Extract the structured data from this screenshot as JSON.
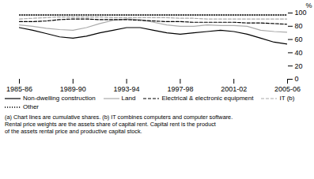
{
  "chart_data": {
    "type": "line",
    "ylabel": "%",
    "footnote": "(a) Chart lines are cumulative shares.  (b) IT combines computers and computer software.\nRental price weights are the assets share of capital rent. Capital rent is the product\nof the assets rental price and productive capital stock.",
    "x": [
      0,
      1,
      2,
      3,
      4,
      5,
      6,
      7,
      8,
      9,
      10,
      11,
      12,
      13,
      14,
      15,
      16,
      17,
      18,
      19,
      20
    ],
    "xlim": [
      0,
      20
    ],
    "xticks": [
      {
        "value": 0,
        "label": "1985-86"
      },
      {
        "value": 4,
        "label": "1989-90"
      },
      {
        "value": 8,
        "label": "1993-94"
      },
      {
        "value": 12,
        "label": "1997-98"
      },
      {
        "value": 16,
        "label": "2001-02"
      },
      {
        "value": 20,
        "label": "2005-06"
      }
    ],
    "ylim": [
      0,
      100
    ],
    "yticks": [
      0,
      20,
      40,
      60,
      80,
      100
    ],
    "grid": false,
    "legend": "bottom",
    "series": [
      {
        "name": "Non-dwelling construction",
        "color": "#000000",
        "line_style": "solid",
        "values": [
          78,
          74,
          69,
          64,
          62,
          65,
          70,
          74,
          78,
          78,
          74,
          70,
          68,
          70,
          72,
          74,
          72,
          68,
          62,
          56,
          53
        ]
      },
      {
        "name": "Land",
        "color": "#aaaaaa",
        "line_style": "solid",
        "values": [
          82,
          80,
          77,
          75,
          74,
          78,
          84,
          89,
          91,
          90,
          86,
          82,
          80,
          80,
          82,
          81,
          81,
          80,
          74,
          72,
          71
        ]
      },
      {
        "name": "Electrical & electronic equipment",
        "color": "#000000",
        "line_style": "dashed",
        "values": [
          87,
          87,
          88,
          90,
          91,
          91,
          90,
          90,
          90,
          89,
          88,
          87,
          87,
          86,
          86,
          86,
          86,
          85,
          85,
          84,
          83
        ]
      },
      {
        "name": "IT (b)",
        "color": "#aaaaaa",
        "line_style": "dashed",
        "values": [
          91,
          92,
          93,
          94,
          94,
          94,
          94,
          93,
          93,
          93,
          93,
          93,
          92,
          92,
          91,
          91,
          91,
          91,
          91,
          91,
          91
        ]
      },
      {
        "name": "Other",
        "color": "#000000",
        "line_style": "dotted",
        "values": [
          97,
          97,
          97,
          97,
          97,
          97,
          97,
          97,
          97,
          97,
          97,
          97,
          97,
          97,
          97,
          97,
          97,
          97,
          97,
          97,
          97
        ]
      }
    ]
  }
}
